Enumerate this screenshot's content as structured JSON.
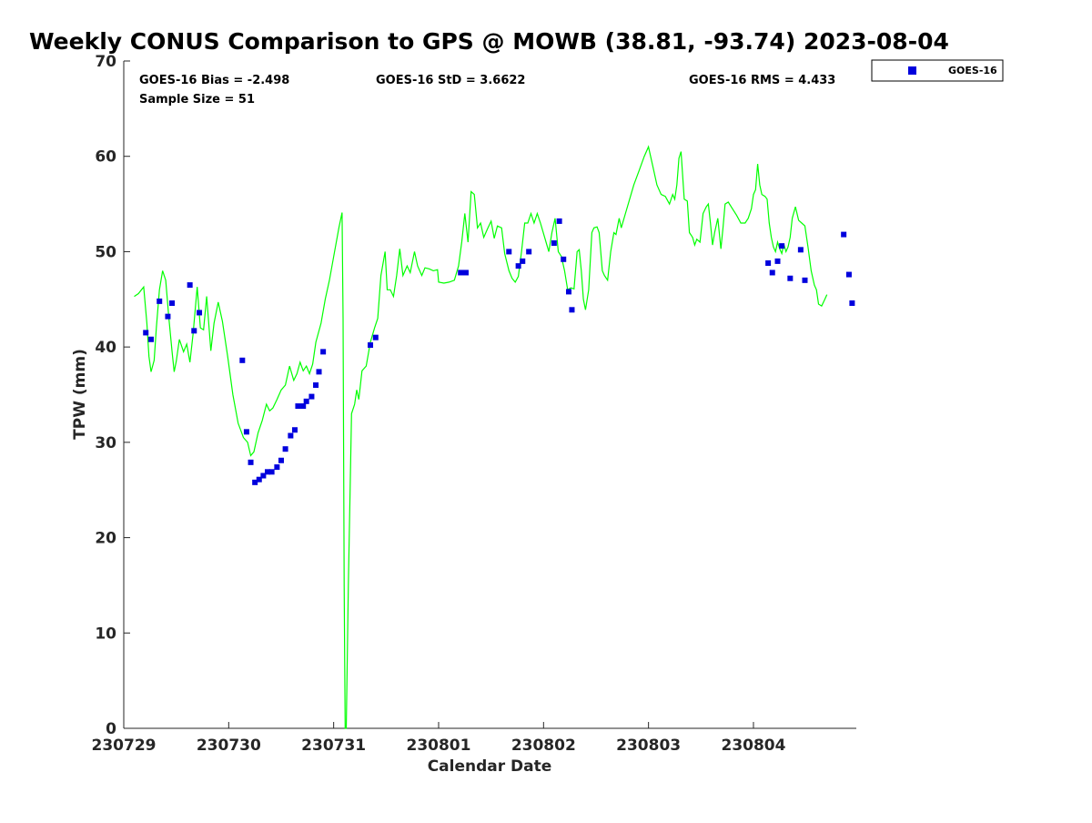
{
  "chart_data": {
    "type": "line",
    "title": "Weekly CONUS Comparison to GPS @ MOWB (38.81, -93.74) 2023-08-04",
    "xlabel": "Calendar Date",
    "ylabel": "TPW (mm)",
    "xlim": [
      0,
      6.98
    ],
    "ylim": [
      0,
      70
    ],
    "x_tick_labels": [
      "230729",
      "230730",
      "230731",
      "230801",
      "230802",
      "230803",
      "230804"
    ],
    "y_ticks": [
      0,
      10,
      20,
      30,
      40,
      50,
      60,
      70
    ],
    "grid": false,
    "legend_position": "top-right",
    "stats": {
      "bias": "GOES-16 Bias = -2.498",
      "std": "GOES-16 StD = 3.6622",
      "rms": "GOES-16 RMS = 4.433",
      "sample": "Sample Size = 51"
    },
    "series": [
      {
        "kind": "line",
        "color": "#00ff00",
        "points": [
          [
            0.1,
            45.3
          ],
          [
            0.14,
            45.6
          ],
          [
            0.19,
            46.3
          ],
          [
            0.22,
            42.5
          ],
          [
            0.24,
            39.0
          ],
          [
            0.26,
            37.4
          ],
          [
            0.29,
            38.6
          ],
          [
            0.31,
            42.0
          ],
          [
            0.34,
            46.0
          ],
          [
            0.37,
            48.0
          ],
          [
            0.4,
            47.0
          ],
          [
            0.43,
            43.0
          ],
          [
            0.46,
            39.5
          ],
          [
            0.48,
            37.4
          ],
          [
            0.5,
            38.5
          ],
          [
            0.53,
            40.8
          ],
          [
            0.57,
            39.5
          ],
          [
            0.6,
            40.3
          ],
          [
            0.63,
            38.4
          ],
          [
            0.66,
            41.3
          ],
          [
            0.7,
            46.3
          ],
          [
            0.73,
            42.0
          ],
          [
            0.76,
            41.8
          ],
          [
            0.79,
            45.3
          ],
          [
            0.83,
            39.6
          ],
          [
            0.86,
            42.5
          ],
          [
            0.9,
            44.7
          ],
          [
            0.94,
            42.7
          ],
          [
            0.99,
            39.0
          ],
          [
            1.04,
            35.0
          ],
          [
            1.09,
            32.0
          ],
          [
            1.14,
            30.5
          ],
          [
            1.18,
            30.0
          ],
          [
            1.21,
            28.6
          ],
          [
            1.24,
            29.0
          ],
          [
            1.28,
            31.0
          ],
          [
            1.32,
            32.3
          ],
          [
            1.36,
            34.0
          ],
          [
            1.39,
            33.3
          ],
          [
            1.42,
            33.6
          ],
          [
            1.46,
            34.5
          ],
          [
            1.5,
            35.5
          ],
          [
            1.54,
            36.0
          ],
          [
            1.58,
            38.0
          ],
          [
            1.62,
            36.5
          ],
          [
            1.65,
            37.2
          ],
          [
            1.68,
            38.4
          ],
          [
            1.71,
            37.5
          ],
          [
            1.74,
            38.0
          ],
          [
            1.77,
            37.2
          ],
          [
            1.8,
            38.2
          ],
          [
            1.83,
            40.5
          ],
          [
            1.88,
            42.5
          ],
          [
            1.92,
            45.0
          ],
          [
            1.96,
            47.0
          ],
          [
            2.0,
            49.5
          ],
          [
            2.05,
            52.5
          ],
          [
            2.08,
            54.1
          ],
          [
            2.09,
            43.0
          ],
          [
            2.1,
            15.0
          ],
          [
            2.11,
            0.0
          ],
          [
            2.12,
            0.0
          ],
          [
            2.14,
            15.0
          ],
          [
            2.17,
            33.0
          ],
          [
            2.2,
            34.0
          ],
          [
            2.22,
            35.5
          ],
          [
            2.24,
            34.5
          ],
          [
            2.27,
            37.5
          ],
          [
            2.31,
            38.0
          ],
          [
            2.35,
            40.5
          ],
          [
            2.39,
            42.0
          ],
          [
            2.42,
            43.0
          ],
          [
            2.45,
            47.5
          ],
          [
            2.49,
            50.0
          ],
          [
            2.51,
            46.0
          ],
          [
            2.54,
            46.0
          ],
          [
            2.57,
            45.3
          ],
          [
            2.6,
            47.5
          ],
          [
            2.63,
            50.3
          ],
          [
            2.66,
            47.5
          ],
          [
            2.7,
            48.5
          ],
          [
            2.73,
            47.8
          ],
          [
            2.77,
            50.0
          ],
          [
            2.8,
            48.5
          ],
          [
            2.84,
            47.5
          ],
          [
            2.87,
            48.3
          ],
          [
            2.91,
            48.2
          ],
          [
            2.95,
            48.0
          ],
          [
            2.99,
            48.1
          ],
          [
            3.0,
            46.8
          ],
          [
            3.05,
            46.7
          ],
          [
            3.1,
            46.8
          ],
          [
            3.15,
            47.0
          ],
          [
            3.19,
            48.5
          ],
          [
            3.22,
            51.0
          ],
          [
            3.25,
            54.0
          ],
          [
            3.28,
            51.0
          ],
          [
            3.31,
            56.3
          ],
          [
            3.34,
            56.0
          ],
          [
            3.37,
            52.5
          ],
          [
            3.4,
            53.0
          ],
          [
            3.43,
            51.5
          ],
          [
            3.47,
            52.5
          ],
          [
            3.5,
            53.2
          ],
          [
            3.53,
            51.4
          ],
          [
            3.56,
            52.7
          ],
          [
            3.6,
            52.5
          ],
          [
            3.63,
            49.8
          ],
          [
            3.67,
            48.0
          ],
          [
            3.7,
            47.2
          ],
          [
            3.73,
            46.8
          ],
          [
            3.76,
            47.4
          ],
          [
            3.79,
            50.0
          ],
          [
            3.82,
            53.0
          ],
          [
            3.85,
            53.0
          ],
          [
            3.88,
            54.0
          ],
          [
            3.91,
            53.0
          ],
          [
            3.94,
            54.0
          ],
          [
            3.97,
            53.0
          ],
          [
            4.01,
            51.5
          ],
          [
            4.05,
            50.0
          ],
          [
            4.08,
            52.0
          ],
          [
            4.11,
            53.5
          ],
          [
            4.14,
            50.0
          ],
          [
            4.17,
            49.5
          ],
          [
            4.2,
            48.0
          ],
          [
            4.23,
            46.0
          ],
          [
            4.26,
            46.2
          ],
          [
            4.29,
            46.1
          ],
          [
            4.32,
            50.0
          ],
          [
            4.34,
            50.2
          ],
          [
            4.36,
            48.0
          ],
          [
            4.38,
            45.0
          ],
          [
            4.4,
            43.9
          ],
          [
            4.43,
            46.0
          ],
          [
            4.46,
            52.0
          ],
          [
            4.48,
            52.5
          ],
          [
            4.51,
            52.6
          ],
          [
            4.53,
            52.0
          ],
          [
            4.56,
            48.0
          ],
          [
            4.58,
            47.5
          ],
          [
            4.61,
            47.0
          ],
          [
            4.64,
            50.0
          ],
          [
            4.67,
            52.0
          ],
          [
            4.69,
            51.8
          ],
          [
            4.72,
            53.5
          ],
          [
            4.74,
            52.5
          ],
          [
            4.78,
            54.0
          ],
          [
            4.82,
            55.5
          ],
          [
            4.86,
            57.0
          ],
          [
            4.91,
            58.5
          ],
          [
            4.96,
            60.0
          ],
          [
            5.0,
            61.0
          ],
          [
            5.04,
            59.0
          ],
          [
            5.08,
            57.0
          ],
          [
            5.12,
            56.0
          ],
          [
            5.16,
            55.8
          ],
          [
            5.2,
            55.0
          ],
          [
            5.23,
            56.0
          ],
          [
            5.25,
            55.5
          ],
          [
            5.27,
            57.0
          ],
          [
            5.29,
            59.8
          ],
          [
            5.31,
            60.5
          ],
          [
            5.34,
            55.5
          ],
          [
            5.37,
            55.3
          ],
          [
            5.39,
            52.0
          ],
          [
            5.42,
            51.5
          ],
          [
            5.44,
            50.7
          ],
          [
            5.46,
            51.3
          ],
          [
            5.49,
            51.0
          ],
          [
            5.52,
            54.0
          ],
          [
            5.55,
            54.7
          ],
          [
            5.57,
            55.0
          ],
          [
            5.59,
            53.0
          ],
          [
            5.61,
            50.7
          ],
          [
            5.63,
            52.0
          ],
          [
            5.66,
            53.5
          ],
          [
            5.69,
            50.3
          ],
          [
            5.71,
            52.5
          ],
          [
            5.73,
            55.0
          ],
          [
            5.76,
            55.2
          ],
          [
            5.8,
            54.5
          ],
          [
            5.84,
            53.8
          ],
          [
            5.88,
            53.0
          ],
          [
            5.92,
            53.0
          ],
          [
            5.95,
            53.5
          ],
          [
            5.98,
            54.5
          ],
          [
            6.0,
            56.0
          ],
          [
            6.02,
            56.5
          ],
          [
            6.04,
            59.2
          ],
          [
            6.06,
            57.0
          ],
          [
            6.08,
            56.0
          ],
          [
            6.11,
            55.8
          ],
          [
            6.13,
            55.5
          ],
          [
            6.15,
            53.0
          ],
          [
            6.17,
            51.5
          ],
          [
            6.19,
            50.5
          ],
          [
            6.21,
            50.0
          ],
          [
            6.23,
            51.0
          ],
          [
            6.25,
            50.3
          ],
          [
            6.27,
            49.8
          ],
          [
            6.29,
            50.8
          ],
          [
            6.31,
            50.0
          ],
          [
            6.33,
            50.5
          ],
          [
            6.35,
            51.5
          ],
          [
            6.37,
            53.5
          ],
          [
            6.4,
            54.7
          ],
          [
            6.43,
            53.3
          ],
          [
            6.46,
            53.0
          ],
          [
            6.49,
            52.7
          ],
          [
            6.52,
            50.5
          ],
          [
            6.55,
            48.0
          ],
          [
            6.58,
            46.5
          ],
          [
            6.6,
            46.0
          ],
          [
            6.62,
            44.5
          ],
          [
            6.65,
            44.3
          ],
          [
            6.68,
            45.0
          ],
          [
            6.7,
            45.5
          ]
        ]
      },
      {
        "name": "GOES-16",
        "kind": "markers",
        "color": "#0000dd",
        "points": [
          [
            0.21,
            41.5
          ],
          [
            0.26,
            40.8
          ],
          [
            0.34,
            44.8
          ],
          [
            0.42,
            43.2
          ],
          [
            0.46,
            44.6
          ],
          [
            0.63,
            46.5
          ],
          [
            0.67,
            41.7
          ],
          [
            0.72,
            43.6
          ],
          [
            1.13,
            38.6
          ],
          [
            1.17,
            31.1
          ],
          [
            1.21,
            27.9
          ],
          [
            1.25,
            25.8
          ],
          [
            1.29,
            26.1
          ],
          [
            1.33,
            26.5
          ],
          [
            1.37,
            26.9
          ],
          [
            1.41,
            26.9
          ],
          [
            1.46,
            27.4
          ],
          [
            1.5,
            28.1
          ],
          [
            1.54,
            29.3
          ],
          [
            1.59,
            30.7
          ],
          [
            1.63,
            31.3
          ],
          [
            1.66,
            33.8
          ],
          [
            1.71,
            33.8
          ],
          [
            1.74,
            34.3
          ],
          [
            1.79,
            34.8
          ],
          [
            1.83,
            36.0
          ],
          [
            1.86,
            37.4
          ],
          [
            1.9,
            39.5
          ],
          [
            2.35,
            40.2
          ],
          [
            2.4,
            41.0
          ],
          [
            3.21,
            47.8
          ],
          [
            3.26,
            47.8
          ],
          [
            3.67,
            50.0
          ],
          [
            3.76,
            48.5
          ],
          [
            3.8,
            49.0
          ],
          [
            3.86,
            50.0
          ],
          [
            4.1,
            50.9
          ],
          [
            4.15,
            53.2
          ],
          [
            4.19,
            49.2
          ],
          [
            4.24,
            45.8
          ],
          [
            4.27,
            43.9
          ],
          [
            6.14,
            48.8
          ],
          [
            6.18,
            47.8
          ],
          [
            6.23,
            49.0
          ],
          [
            6.27,
            50.6
          ],
          [
            6.35,
            47.2
          ],
          [
            6.45,
            50.2
          ],
          [
            6.49,
            47.0
          ],
          [
            6.86,
            51.8
          ],
          [
            6.91,
            47.6
          ],
          [
            6.94,
            44.6
          ]
        ]
      }
    ]
  }
}
